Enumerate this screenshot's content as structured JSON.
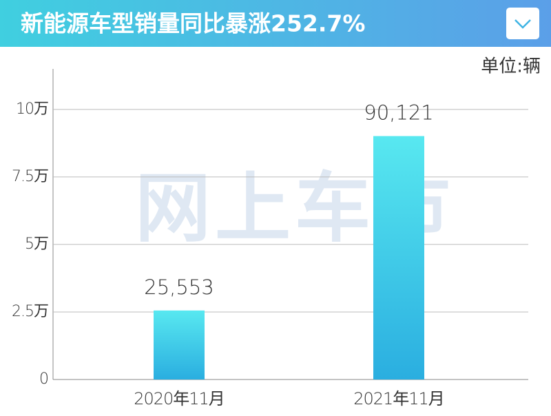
{
  "chart_data": {
    "type": "bar",
    "title": "新能源车型销量同比暴涨252.7%",
    "unit_label": "单位:辆",
    "watermark": "网上车市",
    "categories": [
      "2020年11月",
      "2021年11月"
    ],
    "values": [
      25553,
      90121
    ],
    "value_labels": [
      "25,553",
      "90,121"
    ],
    "color_top": "#58e8f0",
    "color_bottom": "#2aaee0",
    "ylim": [
      0,
      115000
    ],
    "yticks": [
      0,
      {
        "value": 25000,
        "label": "2.5万"
      },
      {
        "value": 50000,
        "label": "5万"
      },
      {
        "value": 75000,
        "label": "7.5万"
      },
      {
        "value": 100000,
        "label": "10万"
      }
    ],
    "grid": true
  }
}
